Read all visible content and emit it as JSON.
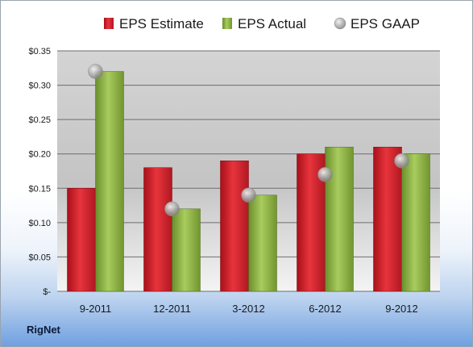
{
  "company": "RigNet",
  "colors": {
    "estimate": "#d0202a",
    "actual": "#8fb545",
    "gaap": "#b0b0b0"
  },
  "chart_data": {
    "type": "bar",
    "categories": [
      "9-2011",
      "12-2011",
      "3-2012",
      "6-2012",
      "9-2012"
    ],
    "series": [
      {
        "name": "EPS Estimate",
        "values": [
          0.15,
          0.18,
          0.19,
          0.2,
          0.21
        ]
      },
      {
        "name": "EPS Actual",
        "values": [
          0.32,
          0.12,
          0.14,
          0.21,
          0.2
        ]
      },
      {
        "name": "EPS GAAP",
        "values": [
          0.32,
          0.12,
          0.14,
          0.17,
          0.19
        ]
      }
    ],
    "yticks": [
      0,
      0.05,
      0.1,
      0.15,
      0.2,
      0.25,
      0.3,
      0.35
    ],
    "ytick_labels": [
      "$-",
      "$0.05",
      "$0.10",
      "$0.15",
      "$0.20",
      "$0.25",
      "$0.30",
      "$0.35"
    ],
    "ylim": [
      0,
      0.35
    ],
    "grid": true,
    "legend_position": "top"
  }
}
